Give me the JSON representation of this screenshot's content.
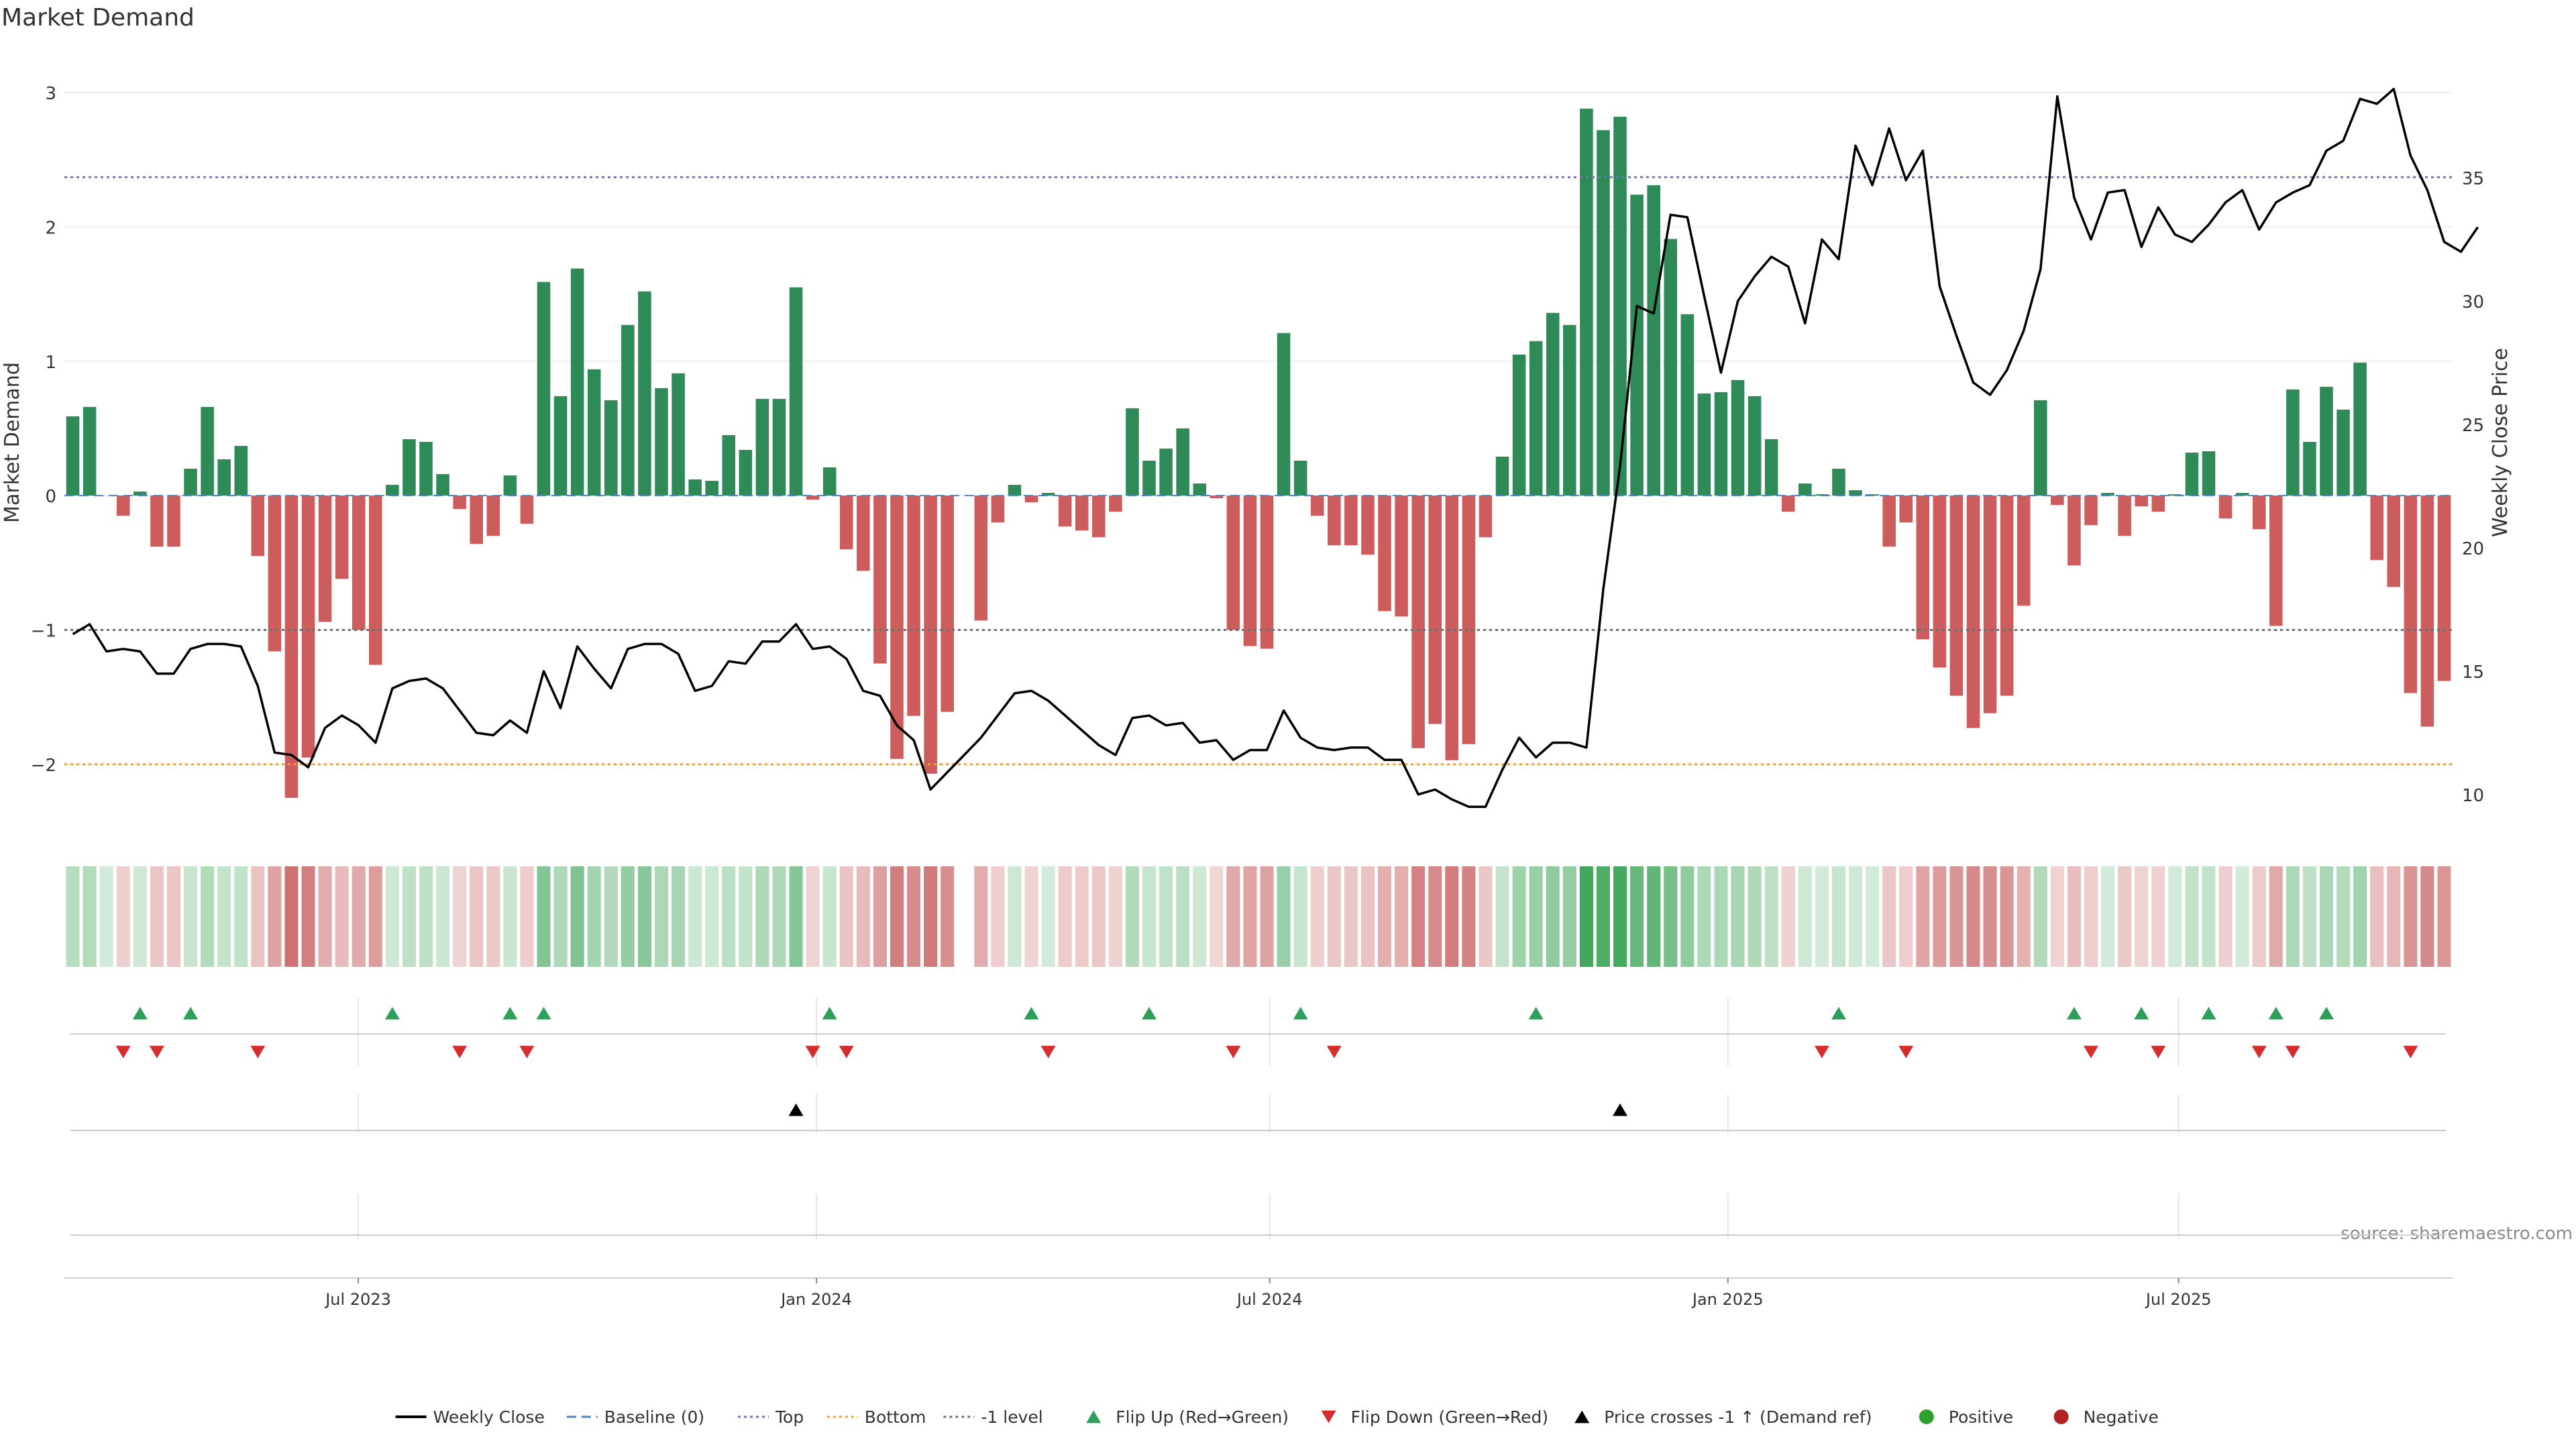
{
  "chart_data": {
    "type": "bar",
    "title": "Market Demand",
    "ylabel": "Market Demand",
    "ylabel_right": "Weekly Close Price",
    "ylim": [
      -2.5,
      3.1
    ],
    "ylim_right": [
      8.5,
      39
    ],
    "yticks": [
      3,
      2,
      1,
      0,
      -1,
      -2
    ],
    "yticks_right": [
      35,
      30,
      25,
      20,
      15,
      10
    ],
    "x_start": "2023-03-05",
    "x_end": "2025-10-19",
    "x_ticks": [
      {
        "date": "2023-07-01",
        "label": "Jul 2023"
      },
      {
        "date": "2024-01-01",
        "label": "Jan 2024"
      },
      {
        "date": "2024-07-01",
        "label": "Jul 2024"
      },
      {
        "date": "2025-01-01",
        "label": "Jan 2025"
      },
      {
        "date": "2025-07-01",
        "label": "Jul 2025"
      }
    ],
    "reference_lines": [
      {
        "name": "Top",
        "value": 2.37,
        "color": "#7272c0",
        "style": "dotted"
      },
      {
        "name": "Bottom",
        "value": -2.0,
        "color": "#f0a030",
        "style": "dotted"
      },
      {
        "name": "-1 level",
        "value": -1.0,
        "color": "#707070",
        "style": "dotted"
      },
      {
        "name": "Baseline (0)",
        "value": 0,
        "color": "#4f86c6",
        "style": "dashed"
      }
    ],
    "demand": [
      0.59,
      0.66,
      0,
      -0.15,
      0.03,
      -0.38,
      -0.38,
      0.2,
      0.66,
      0.27,
      0.37,
      -0.45,
      -1.16,
      -2.25,
      -1.95,
      -0.94,
      -0.62,
      -1.0,
      -1.26,
      0.08,
      0.42,
      0.4,
      0.16,
      -0.1,
      -0.36,
      -0.3,
      0.15,
      -0.21,
      1.59,
      0.74,
      1.69,
      0.94,
      0.71,
      1.27,
      1.52,
      0.8,
      0.91,
      0.12,
      0.11,
      0.45,
      0.34,
      0.72,
      0.72,
      1.55,
      -0.03,
      0.21,
      -0.4,
      -0.56,
      -1.25,
      -1.96,
      -1.64,
      -2.07,
      -1.61,
      0,
      -0.93,
      -0.2,
      0.08,
      -0.05,
      0.02,
      -0.23,
      -0.26,
      -0.31,
      -0.12,
      0.65,
      0.26,
      0.35,
      0.5,
      0.09,
      -0.02,
      -1.0,
      -1.12,
      -1.14,
      1.21,
      0.26,
      -0.15,
      -0.37,
      -0.37,
      -0.44,
      -0.86,
      -0.9,
      -1.88,
      -1.7,
      -1.97,
      -1.85,
      -0.31,
      0.29,
      1.05,
      1.15,
      1.36,
      1.27,
      2.88,
      2.72,
      2.82,
      2.24,
      2.31,
      1.91,
      1.35,
      0.76,
      0.77,
      0.86,
      0.74,
      0.42,
      -0.12,
      0.09,
      0.01,
      0.2,
      0.04,
      0.01,
      -0.38,
      -0.2,
      -1.07,
      -1.28,
      -1.49,
      -1.73,
      -1.62,
      -1.49,
      -0.82,
      0.71,
      -0.07,
      -0.52,
      -0.22,
      0.02,
      -0.3,
      -0.08,
      -0.12,
      0.01,
      0.32,
      0.33,
      -0.17,
      0.02,
      -0.25,
      -0.97,
      0.79,
      0.4,
      0.81,
      0.64,
      0.99,
      -0.48,
      -0.68,
      -1.47,
      -1.72,
      -1.38
    ],
    "weekly_close": [
      16.5,
      16.9,
      15.8,
      15.9,
      15.8,
      14.9,
      14.9,
      15.9,
      16.1,
      16.1,
      16.0,
      14.4,
      11.7,
      11.6,
      11.1,
      12.7,
      13.2,
      12.8,
      12.1,
      14.3,
      14.6,
      14.7,
      14.3,
      13.4,
      12.5,
      12.4,
      13.0,
      12.5,
      15.0,
      13.5,
      16.0,
      15.1,
      14.3,
      15.9,
      16.1,
      16.1,
      15.7,
      14.2,
      14.4,
      15.4,
      15.3,
      16.2,
      16.2,
      16.9,
      15.9,
      16.0,
      15.5,
      14.2,
      14.0,
      12.8,
      12.2,
      10.2,
      10.9,
      11.6,
      12.3,
      13.2,
      14.1,
      14.2,
      13.8,
      13.2,
      12.6,
      12.0,
      11.6,
      13.1,
      13.2,
      12.8,
      12.9,
      12.1,
      12.2,
      11.4,
      11.8,
      11.8,
      13.4,
      12.3,
      11.9,
      11.8,
      11.9,
      11.9,
      11.4,
      11.4,
      10.0,
      10.2,
      9.8,
      9.5,
      9.5,
      11.0,
      12.3,
      11.5,
      12.1,
      12.1,
      11.9,
      18.3,
      23.3,
      29.8,
      29.5,
      33.5,
      33.4,
      30.2,
      27.1,
      30.0,
      31.0,
      31.8,
      31.4,
      29.1,
      32.5,
      31.7,
      36.3,
      34.7,
      37.0,
      34.9,
      36.1,
      30.6,
      28.6,
      26.7,
      26.2,
      27.2,
      28.8,
      31.3,
      38.3,
      34.2,
      32.5,
      34.4,
      34.5,
      32.2,
      33.8,
      32.7,
      32.4,
      33.1,
      34.0,
      34.5,
      32.9,
      34.0,
      34.4,
      34.7,
      36.1,
      36.5,
      38.2,
      38.0,
      38.6,
      35.9,
      34.5,
      32.4,
      32.0,
      33.0
    ],
    "heat_gap_index": 53,
    "flip_up_indices": [
      4,
      7,
      19,
      26,
      28,
      45,
      57,
      64,
      73,
      87,
      105,
      119,
      123,
      127,
      131,
      134
    ],
    "flip_down_indices": [
      3,
      5,
      11,
      23,
      27,
      44,
      46,
      58,
      69,
      75,
      104,
      109,
      120,
      124,
      130,
      132,
      139
    ],
    "cross_up_indices": [
      43,
      92
    ],
    "source": "source: sharemaestro.com",
    "legend": [
      {
        "label": "Weekly Close",
        "type": "line",
        "color": "#000000"
      },
      {
        "label": "Baseline (0)",
        "type": "dash",
        "color": "#4f86c6"
      },
      {
        "label": "Top",
        "type": "dot",
        "color": "#7272c0"
      },
      {
        "label": "Bottom",
        "type": "dot",
        "color": "#f0a030"
      },
      {
        "label": "-1 level",
        "type": "dot",
        "color": "#707070"
      },
      {
        "label": "Flip Up (Red→Green)",
        "type": "tri-up",
        "color": "#2ca05a"
      },
      {
        "label": "Flip Down (Green→Red)",
        "type": "tri-down",
        "color": "#d62c2c"
      },
      {
        "label": "Price crosses -1 ↑ (Demand ref)",
        "type": "tri-up",
        "color": "#000000"
      },
      {
        "label": "Positive",
        "type": "circle",
        "color": "#2ca02c"
      },
      {
        "label": "Negative",
        "type": "circle",
        "color": "#b22222"
      }
    ],
    "colors": {
      "positive_bar": "#2e8b57",
      "negative_bar": "#cd5c5c",
      "flip_up": "#2ca05a",
      "flip_down": "#d62c2c",
      "cross_up": "#000000",
      "price_line": "#000000"
    }
  }
}
